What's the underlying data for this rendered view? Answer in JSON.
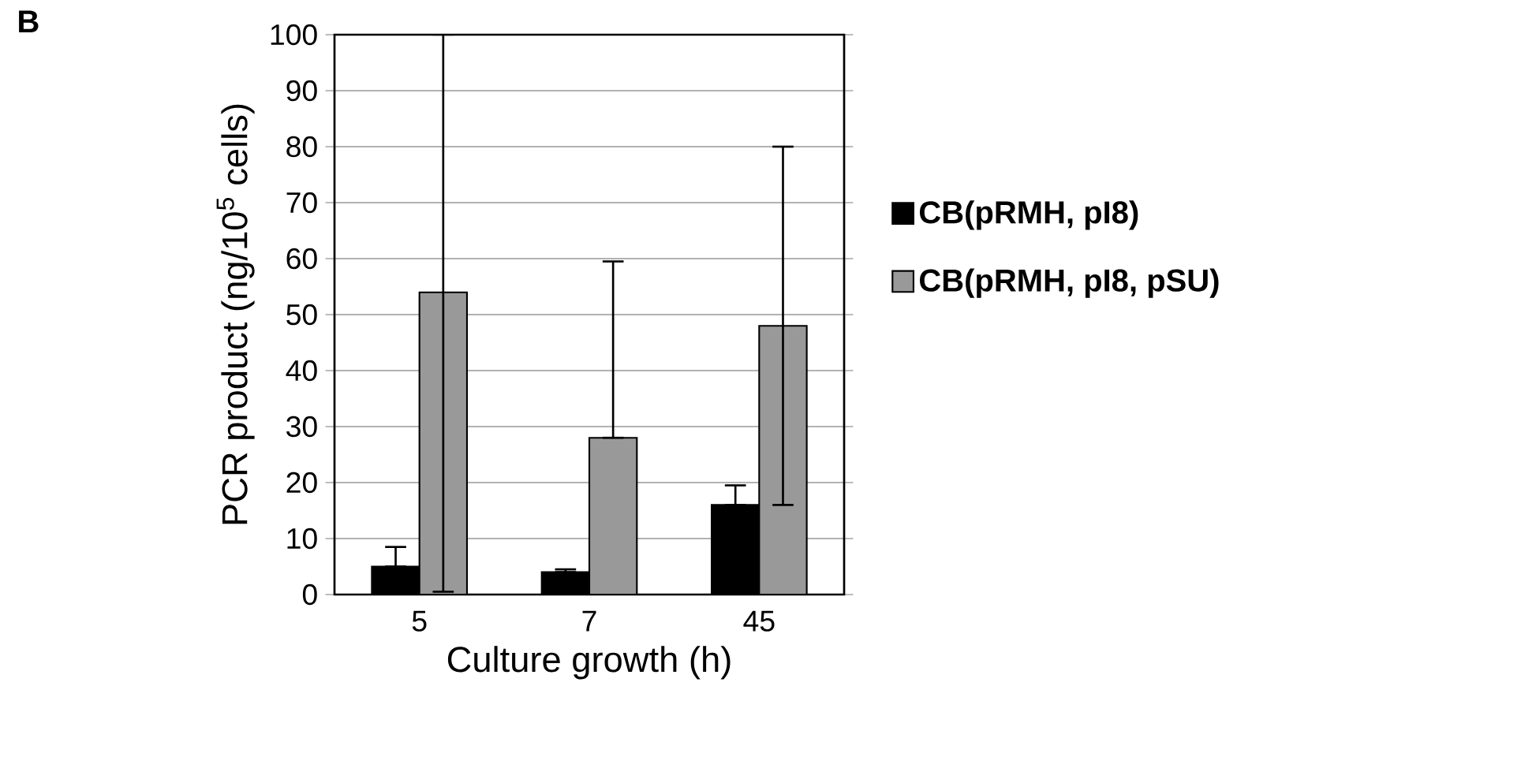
{
  "chart_data": {
    "type": "bar",
    "annotations": [
      "B"
    ],
    "xlabel": "Culture growth (h)",
    "ylabel": "PCR product (ng/10$^{5}$ cells)",
    "categories": [
      "5",
      "7",
      "45"
    ],
    "series": [
      {
        "name": "CB(pRMH, pI8)",
        "color": "#000000",
        "values": [
          5,
          4,
          16
        ],
        "errors": [
          [
            5,
            8.5
          ],
          [
            4,
            4.5
          ],
          [
            16,
            19.5
          ]
        ]
      },
      {
        "name": "CB(pRMH, pI8, pSU)",
        "color": "#999999",
        "values": [
          54,
          28,
          48
        ],
        "errors": [
          [
            0.5,
            100
          ],
          [
            28,
            59.5
          ],
          [
            16,
            80
          ]
        ]
      }
    ],
    "ylim": [
      0,
      100
    ],
    "yticks": [
      0,
      10,
      20,
      30,
      40,
      50,
      60,
      70,
      80,
      90,
      100
    ],
    "grid": "y",
    "legend": "right"
  }
}
